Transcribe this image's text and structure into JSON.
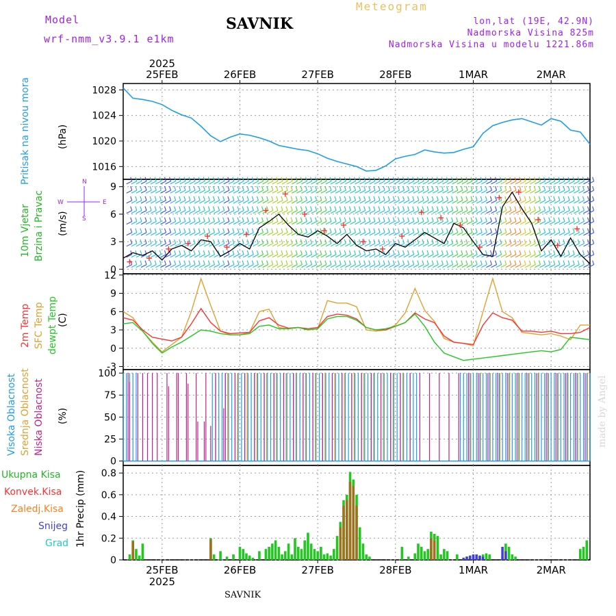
{
  "header": {
    "model_label": "Model",
    "model_name": "wrf-nmm_v3.9.1 e1km",
    "title": "SAVNIK",
    "meteogram": "Meteogram",
    "lonlat": "lon,lat (19E, 42.9N)",
    "altitude": "Nadmorska Visina 825m",
    "model_altitude": "Nadmorska Visina u modelu 1221.86m",
    "watermark": "made by Angel",
    "footer": "SAVNIK"
  },
  "colors": {
    "pressure": "#1e9ee8",
    "temp2m": "#ff3030",
    "sfc_temp": "#e0a030",
    "dewpt": "#20c820",
    "wind_speed": "#000000",
    "gust": "#ff3030",
    "high_cloud": "#1e9ee8",
    "mid_cloud": "#e0a030",
    "low_cloud": "#c0208a",
    "total_precip": "#20c820",
    "convective": "#ff3030",
    "frozen": "#ff7f20",
    "snow": "#4040e0",
    "graupel": "#20c8c8",
    "labels_purple": "#a020f0"
  },
  "time_axis": {
    "year": "2025",
    "days": [
      "25FEB",
      "26FEB",
      "27FEB",
      "28FEB",
      "1MAR",
      "2MAR"
    ]
  },
  "chart_data": [
    {
      "type": "line",
      "panel": "pressure",
      "ylabel_1": "Pritisak na nivou mora",
      "ylabel_2": "(hPa)",
      "x_unit": "hours since 2025-02-24 12:00",
      "ylim": [
        1014,
        1029
      ],
      "yticks": [
        1016,
        1020,
        1024,
        1028
      ],
      "series": [
        {
          "name": "Pritisak na nivou mora",
          "x": [
            0,
            3,
            6,
            9,
            12,
            15,
            18,
            21,
            24,
            27,
            30,
            33,
            36,
            39,
            42,
            45,
            48,
            51,
            54,
            57,
            60,
            63,
            66,
            69,
            72,
            75,
            78,
            81,
            84,
            87,
            90,
            93,
            96,
            99,
            102,
            105,
            108,
            111,
            114,
            117,
            120,
            123,
            126,
            129,
            132,
            135,
            138,
            141,
            144
          ],
          "y": [
            1028.3,
            1026.7,
            1026.5,
            1026.2,
            1025.7,
            1024.8,
            1024.1,
            1023.6,
            1022.3,
            1020.8,
            1019.9,
            1020.6,
            1021.1,
            1020.9,
            1020.5,
            1020.0,
            1019.3,
            1019.0,
            1018.7,
            1018.5,
            1018.0,
            1017.3,
            1016.8,
            1016.4,
            1016.0,
            1015.3,
            1015.4,
            1016.1,
            1017.2,
            1017.6,
            1017.9,
            1018.6,
            1018.3,
            1018.1,
            1018.2,
            1018.7,
            1019.1,
            1021.2,
            1022.4,
            1022.9,
            1023.3,
            1023.5,
            1023.0,
            1022.5,
            1023.5,
            1023.1,
            1021.7,
            1021.4,
            1019.5
          ]
        }
      ]
    },
    {
      "type": "line",
      "panel": "wind",
      "ylabel_1": "10m Vjetar",
      "ylabel_2": "Brzina i Pravac",
      "ylabel_3": "(m/s)",
      "compass": {
        "n": "N",
        "s": "S",
        "e": "E",
        "w": "W"
      },
      "x_unit": "hours since 2025-02-24 12:00",
      "ylim": [
        -0.5,
        9.8
      ],
      "yticks": [
        0,
        3,
        6,
        9
      ],
      "series": [
        {
          "name": "wind speed",
          "x": [
            0,
            3,
            6,
            9,
            12,
            15,
            18,
            21,
            24,
            27,
            30,
            33,
            36,
            39,
            42,
            45,
            48,
            51,
            54,
            57,
            60,
            63,
            66,
            69,
            72,
            75,
            78,
            81,
            84,
            87,
            90,
            93,
            96,
            99,
            102,
            105,
            108,
            111,
            114,
            117,
            120,
            123,
            126,
            129,
            132,
            135,
            138,
            141,
            144
          ],
          "y": [
            1.2,
            1.8,
            1.5,
            2.0,
            1.0,
            2.2,
            2.6,
            2.0,
            3.2,
            3.0,
            1.4,
            2.0,
            2.8,
            2.2,
            4.5,
            5.2,
            6.0,
            4.8,
            3.8,
            3.5,
            4.2,
            3.6,
            2.8,
            3.8,
            2.6,
            2.0,
            2.2,
            1.6,
            2.8,
            2.4,
            3.2,
            4.0,
            3.4,
            2.8,
            5.0,
            4.5,
            3.0,
            1.6,
            1.4,
            6.8,
            8.4,
            6.6,
            5.0,
            2.0,
            3.2,
            1.4,
            3.4,
            1.6,
            0.6
          ]
        },
        {
          "name": "gust",
          "x": [
            2,
            8,
            14,
            20,
            26,
            32,
            38,
            44,
            50,
            56,
            62,
            68,
            74,
            80,
            86,
            92,
            98,
            104,
            110,
            116,
            122,
            128,
            134,
            140
          ],
          "y": [
            0.8,
            1.2,
            2.2,
            2.8,
            3.6,
            2.4,
            3.8,
            6.4,
            8.2,
            6.0,
            4.2,
            4.8,
            3.0,
            2.2,
            3.6,
            6.2,
            5.6,
            4.8,
            2.4,
            7.8,
            8.4,
            5.4,
            2.6,
            4.4
          ]
        }
      ]
    },
    {
      "type": "line",
      "panel": "temperature",
      "ylabel_1": "2m Temp",
      "ylabel_2": "SFC Temp",
      "ylabel_3": "dewpt Temp",
      "ylabel_4": "(C)",
      "x_unit": "hours since 2025-02-24 12:00",
      "ylim": [
        -3.5,
        12.2
      ],
      "yticks": [
        -3,
        0,
        3,
        6,
        9,
        12
      ],
      "series": [
        {
          "name": "2m Temp",
          "x": [
            0,
            3,
            6,
            9,
            12,
            15,
            18,
            21,
            24,
            27,
            30,
            33,
            36,
            39,
            42,
            45,
            48,
            51,
            54,
            57,
            60,
            63,
            66,
            69,
            72,
            75,
            78,
            81,
            84,
            87,
            90,
            93,
            96,
            99,
            102,
            105,
            108,
            111,
            114,
            117,
            120,
            123,
            126,
            129,
            132,
            135,
            138,
            141,
            144
          ],
          "y": [
            5.0,
            4.6,
            3.0,
            1.8,
            1.5,
            1.2,
            1.8,
            4.0,
            6.5,
            4.2,
            2.8,
            2.4,
            2.5,
            2.6,
            4.5,
            5.0,
            3.8,
            3.3,
            3.4,
            3.2,
            3.4,
            5.2,
            5.6,
            5.4,
            4.8,
            3.4,
            3.0,
            3.0,
            3.6,
            4.2,
            5.8,
            4.8,
            4.2,
            2.0,
            1.0,
            0.8,
            0.6,
            3.8,
            5.8,
            5.0,
            4.6,
            2.8,
            2.8,
            2.6,
            2.8,
            2.4,
            2.4,
            2.6,
            3.4
          ]
        },
        {
          "name": "SFC Temp",
          "x": [
            0,
            3,
            6,
            9,
            12,
            15,
            18,
            21,
            24,
            27,
            30,
            33,
            36,
            39,
            42,
            45,
            48,
            51,
            54,
            57,
            60,
            63,
            66,
            69,
            72,
            75,
            78,
            81,
            84,
            87,
            90,
            93,
            96,
            99,
            102,
            105,
            108,
            111,
            114,
            117,
            120,
            123,
            126,
            129,
            132,
            135,
            138,
            141,
            144
          ],
          "y": [
            6.0,
            5.0,
            2.8,
            1.0,
            -0.6,
            0.6,
            1.8,
            6.0,
            11.4,
            7.0,
            2.8,
            2.2,
            2.2,
            2.6,
            6.0,
            6.4,
            3.4,
            3.2,
            3.4,
            3.0,
            3.2,
            7.8,
            7.4,
            7.4,
            6.8,
            3.0,
            2.8,
            3.0,
            3.8,
            5.8,
            9.8,
            6.2,
            4.4,
            1.6,
            1.0,
            0.8,
            0.4,
            6.0,
            11.4,
            6.0,
            5.0,
            2.6,
            2.4,
            2.2,
            2.4,
            2.0,
            1.4,
            3.8,
            3.8
          ]
        },
        {
          "name": "dewpt Temp",
          "x": [
            0,
            3,
            6,
            9,
            12,
            15,
            18,
            21,
            24,
            27,
            30,
            33,
            36,
            39,
            42,
            45,
            48,
            51,
            54,
            57,
            60,
            63,
            66,
            69,
            72,
            75,
            78,
            81,
            84,
            87,
            90,
            93,
            96,
            99,
            102,
            105,
            108,
            111,
            114,
            117,
            120,
            123,
            126,
            129,
            132,
            135,
            138,
            141,
            144
          ],
          "y": [
            4.0,
            4.2,
            2.8,
            0.8,
            -0.8,
            0.2,
            1.0,
            2.0,
            3.0,
            2.8,
            2.4,
            2.2,
            2.2,
            2.4,
            3.6,
            3.8,
            3.2,
            3.2,
            3.4,
            3.0,
            3.2,
            4.8,
            5.2,
            5.2,
            4.6,
            3.4,
            3.0,
            3.2,
            3.6,
            4.2,
            5.6,
            3.6,
            1.0,
            -0.8,
            -1.4,
            -2.0,
            -1.8,
            -1.6,
            -1.4,
            -1.2,
            -1.0,
            -0.8,
            -0.6,
            -0.4,
            -0.6,
            -0.2,
            1.8,
            1.6,
            1.4
          ]
        }
      ]
    },
    {
      "type": "bar",
      "panel": "clouds",
      "ylabel_1": "Visoka Oblacnost",
      "ylabel_2": "Srednja Oblacnost",
      "ylabel_3": "Niska Oblacnost",
      "ylabel_4": "(%)",
      "ylim": [
        -5,
        104
      ],
      "yticks": [
        0,
        25,
        50,
        75,
        100
      ],
      "series": [
        {
          "name": "Visoka Oblacnost",
          "segments_hours": [
            [
              0,
              4
            ],
            [
              27.5,
              91
            ],
            [
              104,
              144
            ]
          ],
          "value": 100
        },
        {
          "name": "Srednja Oblacnost",
          "segments_hours": [
            [
              30,
              88
            ],
            [
              105,
              144
            ]
          ],
          "value": 100
        },
        {
          "name": "Niska Oblacnost",
          "segments_hours": [
            [
              0,
              30
            ],
            [
              30,
              144
            ]
          ],
          "value": 100
        }
      ]
    },
    {
      "type": "bar",
      "panel": "precipitation",
      "ylabel_1": "Ukupna Kisa",
      "ylabel_2": "Konvek.Kisa",
      "ylabel_3": "Zaledj.Kisa",
      "ylabel_4": "Snijeg",
      "ylabel_5": "Grad",
      "ylabel_6": "1hr Precip",
      "ylabel_7": "(mm)",
      "ylim": [
        0,
        0.87
      ],
      "yticks": [
        0,
        0.2,
        0.4,
        0.6,
        0.8
      ],
      "x_unit": "hours since 2025-02-24 12:00",
      "series": [
        {
          "name": "Ukupna Kisa",
          "x": [
            2,
            3,
            4,
            5,
            6,
            27,
            28,
            30,
            32,
            34,
            36,
            37,
            38,
            39,
            40,
            42,
            44,
            45,
            46,
            47,
            48,
            49,
            50,
            51,
            52,
            53,
            54,
            55,
            56,
            57,
            58,
            59,
            60,
            61,
            62,
            63,
            64,
            65,
            66,
            67,
            68,
            69,
            70,
            71,
            72,
            73,
            74,
            75,
            76,
            86,
            88,
            90,
            91,
            92,
            93,
            94,
            95,
            96,
            97,
            98,
            99,
            100,
            103,
            106,
            109,
            110,
            111,
            112,
            113,
            117,
            118,
            119,
            120,
            121,
            141,
            142,
            143
          ],
          "y": [
            0.05,
            0.18,
            0.1,
            0.04,
            0.15,
            0.2,
            0.05,
            0.08,
            0.03,
            0.05,
            0.12,
            0.1,
            0.06,
            0.04,
            0.02,
            0.08,
            0.1,
            0.12,
            0.15,
            0.18,
            0.12,
            0.05,
            0.08,
            0.15,
            0.05,
            0.2,
            0.12,
            0.1,
            0.18,
            0.25,
            0.15,
            0.1,
            0.08,
            0.12,
            0.05,
            0.06,
            0.04,
            0.1,
            0.22,
            0.35,
            0.55,
            0.6,
            0.81,
            0.74,
            0.6,
            0.3,
            0.15,
            0.05,
            0.03,
            0.12,
            0.03,
            0.06,
            0.15,
            0.12,
            0.08,
            0.1,
            0.26,
            0.24,
            0.22,
            0.05,
            0.1,
            0.08,
            0.05,
            0.03,
            0.03,
            0.03,
            0.05,
            0.06,
            0.05,
            0.03,
            0.15,
            0.12,
            0.05,
            0.03,
            0.1,
            0.12,
            0.18
          ]
        },
        {
          "name": "Konvek.Kisa",
          "x": [
            3,
            27,
            67,
            68,
            69,
            70,
            71,
            72,
            95,
            96
          ],
          "y": [
            0.17,
            0.19,
            0.3,
            0.5,
            0.55,
            0.72,
            0.68,
            0.5,
            0.2,
            0.18
          ]
        },
        {
          "name": "Snijeg",
          "x": [
            105,
            106,
            107,
            108,
            109,
            110,
            111,
            117,
            118
          ],
          "y": [
            0.02,
            0.03,
            0.04,
            0.05,
            0.05,
            0.04,
            0.03,
            0.12,
            0.08
          ]
        }
      ]
    }
  ]
}
